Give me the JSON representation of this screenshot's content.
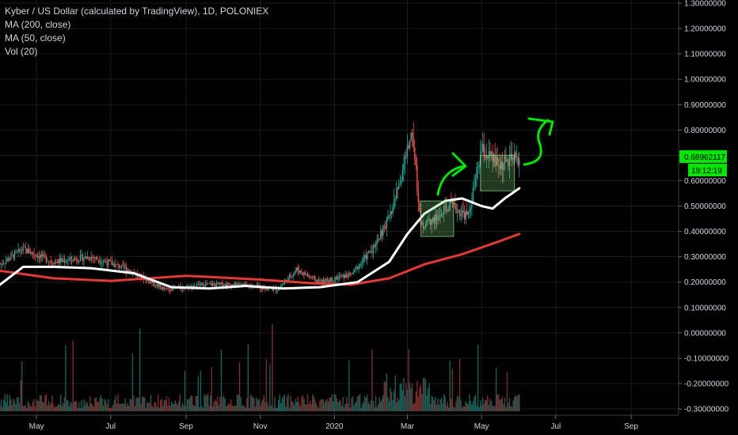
{
  "legend": {
    "title": "Kyber / US Dollar (calculated by TradingView), 1D, POLONIEX",
    "ma200": "MA (200, close)",
    "ma50": "MA (50, close)",
    "vol": "Vol (20)"
  },
  "colors": {
    "background": "#000000",
    "up": "#26a69a",
    "down": "#ef5350",
    "ma200": "#e53935",
    "ma50": "#ffffff",
    "annotation": "#00e600",
    "price_tag": "#00e600",
    "grid": "#1b1b1b"
  },
  "price_axis": {
    "labels": [
      "1.30000000",
      "1.20000000",
      "1.10000000",
      "1.00000000",
      "0.90000000",
      "0.80000000",
      "0.70000000",
      "0.60000000",
      "0.50000000",
      "0.40000000",
      "0.30000000",
      "0.20000000",
      "0.10000000",
      "0.00000000",
      "-0.10000000",
      "-0.20000000",
      "-0.30000000"
    ],
    "current_price": "0.68962117",
    "countdown": "19:12:19"
  },
  "time_axis": {
    "labels": [
      "May",
      "Jul",
      "Sep",
      "Nov",
      "2020",
      "Mar",
      "May",
      "Jul",
      "Sep"
    ]
  },
  "chart_data": {
    "type": "candlestick",
    "symbol": "Kyber / US Dollar",
    "interval": "1D",
    "exchange": "POLONIEX",
    "ylim": [
      -0.3,
      1.3
    ],
    "x_start": "2019-04-01",
    "x_end": "2020-10-10",
    "series": [
      {
        "name": "MA (200, close)",
        "points": [
          [
            "2019-04-01",
            0.245
          ],
          [
            "2019-05-15",
            0.215
          ],
          [
            "2019-07-01",
            0.205
          ],
          [
            "2019-09-01",
            0.225
          ],
          [
            "2019-11-01",
            0.21
          ],
          [
            "2019-12-15",
            0.195
          ],
          [
            "2020-01-15",
            0.19
          ],
          [
            "2020-02-15",
            0.215
          ],
          [
            "2020-03-15",
            0.27
          ],
          [
            "2020-04-15",
            0.31
          ],
          [
            "2020-05-15",
            0.36
          ],
          [
            "2020-06-01",
            0.39
          ]
        ]
      },
      {
        "name": "MA (50, close)",
        "points": [
          [
            "2019-04-01",
            0.19
          ],
          [
            "2019-04-20",
            0.26
          ],
          [
            "2019-05-15",
            0.26
          ],
          [
            "2019-06-15",
            0.255
          ],
          [
            "2019-07-20",
            0.235
          ],
          [
            "2019-08-20",
            0.18
          ],
          [
            "2019-09-20",
            0.175
          ],
          [
            "2019-10-20",
            0.185
          ],
          [
            "2019-11-20",
            0.175
          ],
          [
            "2019-12-20",
            0.18
          ],
          [
            "2020-01-20",
            0.2
          ],
          [
            "2020-02-15",
            0.28
          ],
          [
            "2020-03-01",
            0.39
          ],
          [
            "2020-03-15",
            0.47
          ],
          [
            "2020-04-01",
            0.52
          ],
          [
            "2020-04-15",
            0.53
          ],
          [
            "2020-05-01",
            0.5
          ],
          [
            "2020-05-10",
            0.49
          ],
          [
            "2020-05-20",
            0.53
          ],
          [
            "2020-06-01",
            0.57
          ]
        ]
      },
      {
        "name": "Price (close, approx.)",
        "points": [
          [
            "2019-04-01",
            0.27
          ],
          [
            "2019-04-20",
            0.33
          ],
          [
            "2019-05-15",
            0.28
          ],
          [
            "2019-06-15",
            0.3
          ],
          [
            "2019-07-15",
            0.25
          ],
          [
            "2019-08-15",
            0.17
          ],
          [
            "2019-09-15",
            0.19
          ],
          [
            "2019-10-15",
            0.19
          ],
          [
            "2019-11-15",
            0.17
          ],
          [
            "2019-12-01",
            0.25
          ],
          [
            "2019-12-20",
            0.2
          ],
          [
            "2020-01-15",
            0.23
          ],
          [
            "2020-02-01",
            0.33
          ],
          [
            "2020-02-15",
            0.45
          ],
          [
            "2020-02-25",
            0.62
          ],
          [
            "2020-03-05",
            0.8
          ],
          [
            "2020-03-12",
            0.42
          ],
          [
            "2020-03-25",
            0.45
          ],
          [
            "2020-04-05",
            0.5
          ],
          [
            "2020-04-20",
            0.46
          ],
          [
            "2020-05-01",
            0.72
          ],
          [
            "2020-05-15",
            0.66
          ],
          [
            "2020-06-01",
            0.69
          ]
        ]
      }
    ],
    "volume": {
      "name": "Vol (20)",
      "note": "volume histogram in lower pane"
    },
    "annotations": [
      {
        "type": "box",
        "x": [
          "2020-03-12",
          "2020-04-08"
        ],
        "y": [
          0.38,
          0.52
        ]
      },
      {
        "type": "box",
        "x": [
          "2020-04-30",
          "2020-05-28"
        ],
        "y": [
          0.56,
          0.7
        ]
      },
      {
        "type": "arrow",
        "note": "green hand-drawn arrows pointing up"
      }
    ]
  }
}
